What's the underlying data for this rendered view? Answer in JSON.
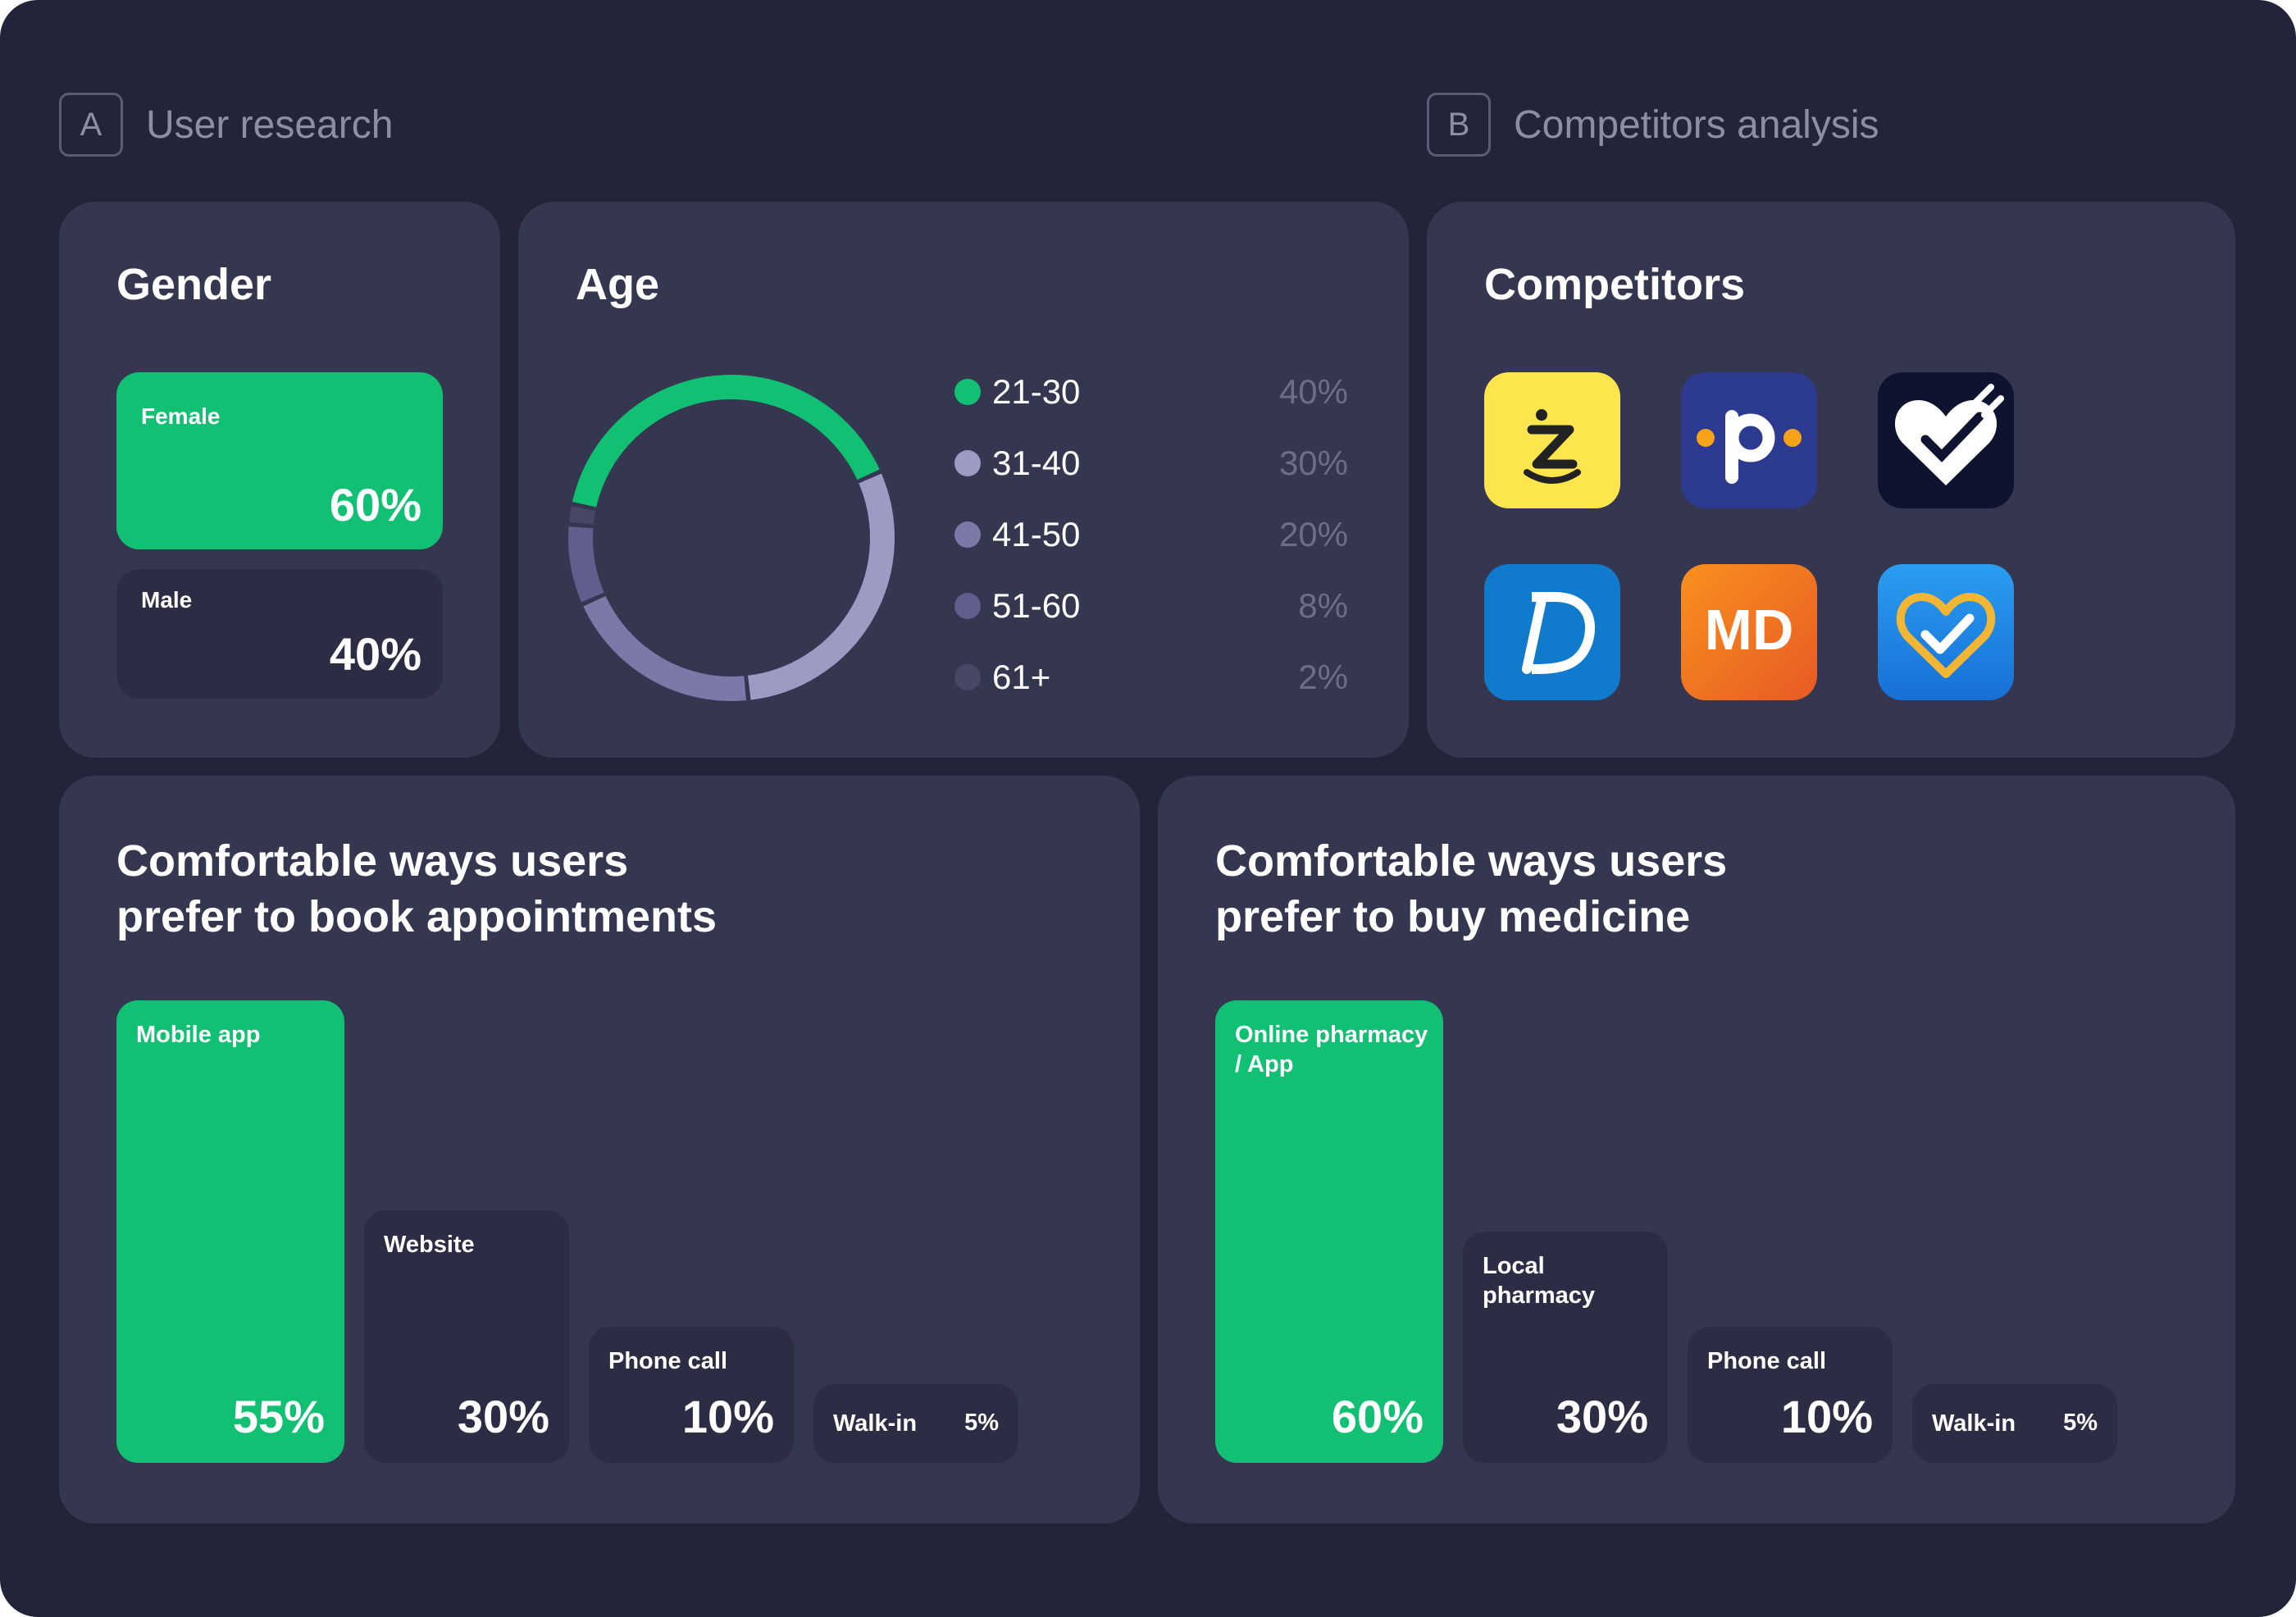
{
  "colors": {
    "background": "#23243a",
    "card": "#353650",
    "accent": "#12c073",
    "dark_bar": "#2c2d44"
  },
  "sections": [
    {
      "letter": "A",
      "title": "User research"
    },
    {
      "letter": "B",
      "title": "Competitors analysis"
    }
  ],
  "gender": {
    "title": "Gender",
    "items": [
      {
        "label": "Female",
        "value": "60%",
        "color": "#12c073"
      },
      {
        "label": "Male",
        "value": "40%",
        "color": "#2c2d44"
      }
    ]
  },
  "age": {
    "title": "Age",
    "items": [
      {
        "label": "21-30",
        "value": "40%",
        "color": "#12c073"
      },
      {
        "label": "31-40",
        "value": "30%",
        "color": "#9c9bc4"
      },
      {
        "label": "41-50",
        "value": "20%",
        "color": "#7a79a8"
      },
      {
        "label": "51-60",
        "value": "8%",
        "color": "#5f5e8c"
      },
      {
        "label": "61+",
        "value": "2%",
        "color": "#484866"
      }
    ]
  },
  "competitors": {
    "title": "Competitors",
    "icons": [
      "zocdoc-icon",
      "practo-icon",
      "heart-check-icon",
      "doctolib-icon",
      "md-icon",
      "heart-shield-icon"
    ]
  },
  "appointments": {
    "title_line1": "Comfortable ways users",
    "title_line2": "prefer to book appointments"
  },
  "medicine": {
    "title_line1": "Comfortable ways users",
    "title_line2": "prefer to buy medicine"
  },
  "chart_data": [
    {
      "type": "pie",
      "title": "Gender",
      "categories": [
        "Female",
        "Male"
      ],
      "values": [
        60,
        40
      ]
    },
    {
      "type": "pie",
      "title": "Age",
      "categories": [
        "21-30",
        "31-40",
        "41-50",
        "51-60",
        "61+"
      ],
      "values": [
        40,
        30,
        20,
        8,
        2
      ],
      "colors": [
        "#12c073",
        "#9c9bc4",
        "#7a79a8",
        "#5f5e8c",
        "#484866"
      ],
      "legend": "right"
    },
    {
      "type": "bar",
      "title": "Comfortable ways users prefer to book appointments",
      "categories": [
        "Mobile app",
        "Website",
        "Phone call",
        "Walk-in"
      ],
      "values": [
        55,
        30,
        10,
        5
      ],
      "labels": [
        "55%",
        "30%",
        "10%",
        "5%"
      ]
    },
    {
      "type": "bar",
      "title": "Comfortable ways users prefer to buy medicine",
      "categories": [
        "Online pharmacy / App",
        "Local pharmacy",
        "Phone call",
        "Walk-in"
      ],
      "values": [
        60,
        30,
        10,
        5
      ],
      "labels": [
        "60%",
        "30%",
        "10%",
        "5%"
      ]
    }
  ]
}
